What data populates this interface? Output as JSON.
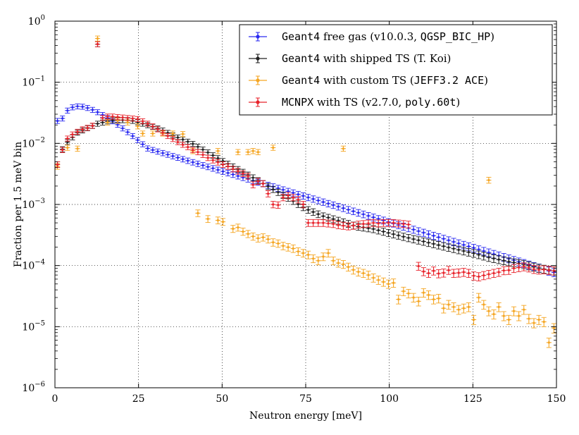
{
  "chart_data": {
    "type": "scatter",
    "title": "",
    "xlabel": "Neutron energy [meV]",
    "ylabel": "Fraction per 1.5 meV bin",
    "xlim": [
      0,
      150
    ],
    "ylim": [
      1e-06,
      1
    ],
    "yscale": "log",
    "grid": true,
    "legend_position": "top-right",
    "x_ticks": [
      0,
      25,
      50,
      75,
      100,
      125,
      150
    ],
    "x_tick_labels": [
      "0",
      "25",
      "50",
      "75",
      "100",
      "125",
      "150"
    ],
    "y_ticks": [
      1e-06,
      1e-05,
      0.0001,
      0.001,
      0.01,
      0.1,
      1
    ],
    "y_tick_labels": [
      {
        "base": "10",
        "exp": "−6"
      },
      {
        "base": "10",
        "exp": "−5"
      },
      {
        "base": "10",
        "exp": "−4"
      },
      {
        "base": "10",
        "exp": "−3"
      },
      {
        "base": "10",
        "exp": "−2"
      },
      {
        "base": "10",
        "exp": "−1"
      },
      {
        "base": "10",
        "exp": "0"
      }
    ],
    "series": [
      {
        "name": "Geant4 free gas (v10.0.3, QGSP_BIC_HP)",
        "legend_parts": [
          {
            "text": "Geant4",
            "style": "mono"
          },
          {
            "text": " free gas (v10.0.3, ",
            "style": "serif"
          },
          {
            "text": "QGSP_BIC_HP",
            "style": "mono"
          },
          {
            "text": ")",
            "style": "serif"
          }
        ],
        "color": "#2b2bf0",
        "model": "maxwell",
        "params": {
          "A": 0.0404,
          "kT": 7.0,
          "start": 0.75,
          "end": 149.25
        },
        "extra_points": []
      },
      {
        "name": "Geant4 with shipped TS (T. Koi)",
        "legend_parts": [
          {
            "text": "Geant4",
            "style": "mono"
          },
          {
            "text": " with shipped TS (T. Koi)",
            "style": "serif"
          }
        ],
        "color": "#222222",
        "model": "keypoints",
        "params": {
          "start": 0.75,
          "end": 149.25,
          "keys": [
            [
              0.75,
              0.0045
            ],
            [
              2.25,
              0.008
            ],
            [
              3.75,
              0.0105
            ],
            [
              6.75,
              0.015
            ],
            [
              12.75,
              0.021
            ],
            [
              17.25,
              0.024
            ],
            [
              22.5,
              0.024
            ],
            [
              27,
              0.0205
            ],
            [
              31.5,
              0.017
            ],
            [
              36,
              0.013
            ],
            [
              41,
              0.01
            ],
            [
              45,
              0.0075
            ],
            [
              50,
              0.0052
            ],
            [
              55,
              0.0037
            ],
            [
              60,
              0.0026
            ],
            [
              65,
              0.0018
            ],
            [
              70,
              0.00125
            ],
            [
              75,
              0.00085
            ],
            [
              80,
              0.00065
            ],
            [
              85,
              0.00054
            ],
            [
              90,
              0.00044
            ],
            [
              95,
              0.0004
            ],
            [
              100,
              0.00034
            ],
            [
              105,
              0.00029
            ],
            [
              110,
              0.00025
            ],
            [
              115,
              0.000215
            ],
            [
              120,
              0.000185
            ],
            [
              125,
              0.00016
            ],
            [
              130,
              0.000135
            ],
            [
              135,
              0.000118
            ],
            [
              140,
              0.000105
            ],
            [
              145,
              9e-05
            ],
            [
              149.25,
              8.2e-05
            ]
          ]
        },
        "extra_points": [
          [
            12.75,
            0.42
          ]
        ]
      },
      {
        "name": "Geant4 with custom TS (JEFF3.2 ACE)",
        "legend_parts": [
          {
            "text": "Geant4",
            "style": "mono"
          },
          {
            "text": " with custom TS (",
            "style": "serif"
          },
          {
            "text": "JEFF3.2 ACE",
            "style": "mono"
          },
          {
            "text": ")",
            "style": "serif"
          }
        ],
        "color": "#f5a623",
        "model": "points",
        "params": {
          "points": [
            [
              0.75,
              0.0042
            ],
            [
              3.75,
              0.0085
            ],
            [
              6.75,
              0.0082
            ],
            [
              12.75,
              0.52
            ],
            [
              15.75,
              0.022
            ],
            [
              18.75,
              0.0235
            ],
            [
              21.75,
              0.022
            ],
            [
              24.75,
              0.019
            ],
            [
              26.25,
              0.0145
            ],
            [
              29.25,
              0.0145
            ],
            [
              32.25,
              0.0145
            ],
            [
              35.25,
              0.0145
            ],
            [
              38.25,
              0.0142
            ],
            [
              41.25,
              0.0075
            ],
            [
              48.75,
              0.0075
            ],
            [
              54.75,
              0.0072
            ],
            [
              57.75,
              0.0072
            ],
            [
              59.25,
              0.0075
            ],
            [
              60.75,
              0.0072
            ],
            [
              65.25,
              0.0085
            ],
            [
              86.25,
              0.0082
            ],
            [
              129.75,
              0.0025
            ],
            [
              42.75,
              0.00072
            ],
            [
              45.75,
              0.00058
            ],
            [
              48.75,
              0.00055
            ],
            [
              50.25,
              0.00052
            ],
            [
              53.25,
              0.0004
            ],
            [
              54.75,
              0.00042
            ],
            [
              56.25,
              0.00036
            ],
            [
              57.75,
              0.00033
            ],
            [
              59.25,
              0.0003
            ],
            [
              60.75,
              0.00028
            ],
            [
              62.25,
              0.00029
            ],
            [
              63.75,
              0.00027
            ],
            [
              65.25,
              0.00024
            ],
            [
              66.75,
              0.00023
            ],
            [
              68.25,
              0.00021
            ],
            [
              69.75,
              0.0002
            ],
            [
              71.25,
              0.00019
            ],
            [
              72.75,
              0.00017
            ],
            [
              74.25,
              0.00016
            ],
            [
              75.75,
              0.00015
            ],
            [
              77.25,
              0.00013
            ],
            [
              78.75,
              0.00012
            ],
            [
              80.25,
              0.00014
            ],
            [
              81.75,
              0.00016
            ],
            [
              83.25,
              0.00012
            ],
            [
              84.75,
              0.00011
            ],
            [
              86.25,
              0.000105
            ],
            [
              87.75,
              9.5e-05
            ],
            [
              89.25,
              8.5e-05
            ],
            [
              90.75,
              7.9e-05
            ],
            [
              92.25,
              7.5e-05
            ],
            [
              93.75,
              7e-05
            ],
            [
              95.25,
              6.3e-05
            ],
            [
              96.75,
              5.8e-05
            ],
            [
              98.25,
              5.4e-05
            ],
            [
              99.75,
              5e-05
            ],
            [
              101.25,
              5.2e-05
            ],
            [
              102.75,
              2.8e-05
            ],
            [
              104.25,
              3.8e-05
            ],
            [
              105.75,
              3.5e-05
            ],
            [
              107.25,
              3e-05
            ],
            [
              108.75,
              2.6e-05
            ],
            [
              110.25,
              3.6e-05
            ],
            [
              111.75,
              3.3e-05
            ],
            [
              113.25,
              2.8e-05
            ],
            [
              114.75,
              2.9e-05
            ],
            [
              116.25,
              2e-05
            ],
            [
              117.75,
              2.3e-05
            ],
            [
              119.25,
              2.1e-05
            ],
            [
              120.75,
              1.9e-05
            ],
            [
              122.25,
              2e-05
            ],
            [
              123.75,
              2.1e-05
            ],
            [
              125.25,
              1.3e-05
            ],
            [
              126.75,
              3e-05
            ],
            [
              128.25,
              2.3e-05
            ],
            [
              129.75,
              1.8e-05
            ],
            [
              131.25,
              1.6e-05
            ],
            [
              132.75,
              2.1e-05
            ],
            [
              134.25,
              1.5e-05
            ],
            [
              135.75,
              1.3e-05
            ],
            [
              137.25,
              1.8e-05
            ],
            [
              138.75,
              1.5e-05
            ],
            [
              140.25,
              1.9e-05
            ],
            [
              141.75,
              1.35e-05
            ],
            [
              143.25,
              1.15e-05
            ],
            [
              144.75,
              1.3e-05
            ],
            [
              146.25,
              1.2e-05
            ],
            [
              147.75,
              5.5e-06
            ],
            [
              149.25,
              9.5e-06
            ]
          ]
        },
        "extra_points": []
      },
      {
        "name": "MCNPX with TS (v2.7.0, poly.60t)",
        "legend_parts": [
          {
            "text": "MCNPX",
            "style": "mono"
          },
          {
            "text": " with TS (v2.7.0, ",
            "style": "serif"
          },
          {
            "text": "poly.60t",
            "style": "mono"
          },
          {
            "text": ")",
            "style": "serif"
          }
        ],
        "color": "#e8242c",
        "model": "points",
        "params": {
          "points": [
            [
              0.75,
              0.0045
            ],
            [
              2.25,
              0.0078
            ],
            [
              3.75,
              0.012
            ],
            [
              5.25,
              0.014
            ],
            [
              6.75,
              0.0155
            ],
            [
              8.25,
              0.017
            ],
            [
              9.75,
              0.018
            ],
            [
              11.25,
              0.0195
            ],
            [
              12.75,
              0.42
            ],
            [
              14.25,
              0.026
            ],
            [
              15.75,
              0.0275
            ],
            [
              17.25,
              0.0275
            ],
            [
              18.75,
              0.027
            ],
            [
              20.25,
              0.0265
            ],
            [
              21.75,
              0.026
            ],
            [
              23.25,
              0.0255
            ],
            [
              24.75,
              0.025
            ],
            [
              26.25,
              0.023
            ],
            [
              27.75,
              0.021
            ],
            [
              29.25,
              0.019
            ],
            [
              30.75,
              0.017
            ],
            [
              32.25,
              0.015
            ],
            [
              33.75,
              0.0132
            ],
            [
              35.25,
              0.0118
            ],
            [
              36.75,
              0.0105
            ],
            [
              38.25,
              0.0095
            ],
            [
              39.75,
              0.0087
            ],
            [
              41.25,
              0.0078
            ],
            [
              42.75,
              0.0072
            ],
            [
              44.25,
              0.0065
            ],
            [
              45.75,
              0.0058
            ],
            [
              47.25,
              0.0053
            ],
            [
              48.75,
              0.0049
            ],
            [
              50.25,
              0.0045
            ],
            [
              51.75,
              0.0042
            ],
            [
              53.25,
              0.0038
            ],
            [
              54.75,
              0.0035
            ],
            [
              56.25,
              0.0032
            ],
            [
              57.75,
              0.0029
            ],
            [
              59.25,
              0.0021
            ],
            [
              60.75,
              0.0024
            ],
            [
              62.25,
              0.0022
            ],
            [
              63.75,
              0.0015
            ],
            [
              65.25,
              0.001
            ],
            [
              66.75,
              0.00098
            ],
            [
              68.25,
              0.0013
            ],
            [
              69.75,
              0.0014
            ],
            [
              71.25,
              0.0013
            ],
            [
              72.75,
              0.0012
            ],
            [
              74.25,
              0.001
            ],
            [
              75.75,
              0.0005
            ],
            [
              77.25,
              0.0005
            ],
            [
              78.75,
              0.0005
            ],
            [
              80.25,
              0.0005
            ],
            [
              81.75,
              0.00049
            ],
            [
              83.25,
              0.00048
            ],
            [
              84.75,
              0.00046
            ],
            [
              86.25,
              0.00045
            ],
            [
              87.75,
              0.00044
            ],
            [
              89.25,
              0.00045
            ],
            [
              90.75,
              0.00047
            ],
            [
              92.25,
              0.00048
            ],
            [
              93.75,
              0.00049
            ],
            [
              95.25,
              0.0005
            ],
            [
              96.75,
              0.00049
            ],
            [
              98.25,
              0.0005
            ],
            [
              99.75,
              0.0005
            ],
            [
              101.25,
              0.0005
            ],
            [
              102.75,
              0.00049
            ],
            [
              104.25,
              0.00048
            ],
            [
              105.75,
              0.00047
            ],
            [
              108.75,
              9.8e-05
            ],
            [
              110.25,
              8e-05
            ],
            [
              111.75,
              7.5e-05
            ],
            [
              113.25,
              8.2e-05
            ],
            [
              114.75,
              7.4e-05
            ],
            [
              116.25,
              7.6e-05
            ],
            [
              117.75,
              8.4e-05
            ],
            [
              119.25,
              7.5e-05
            ],
            [
              120.75,
              7.6e-05
            ],
            [
              122.25,
              7.8e-05
            ],
            [
              123.75,
              7.5e-05
            ],
            [
              125.25,
              6.8e-05
            ],
            [
              126.75,
              6.6e-05
            ],
            [
              128.25,
              6.9e-05
            ],
            [
              129.75,
              7.2e-05
            ],
            [
              131.25,
              7.5e-05
            ],
            [
              132.75,
              7.8e-05
            ],
            [
              134.25,
              8.3e-05
            ],
            [
              135.75,
              8.4e-05
            ],
            [
              137.25,
              9e-05
            ],
            [
              138.75,
              9.3e-05
            ],
            [
              140.25,
              9.6e-05
            ],
            [
              141.75,
              9.2e-05
            ],
            [
              143.25,
              8.7e-05
            ],
            [
              144.75,
              8.5e-05
            ],
            [
              146.25,
              8.6e-05
            ],
            [
              147.75,
              8.4e-05
            ],
            [
              149.25,
              8.2e-05
            ]
          ]
        },
        "extra_points": []
      }
    ]
  }
}
